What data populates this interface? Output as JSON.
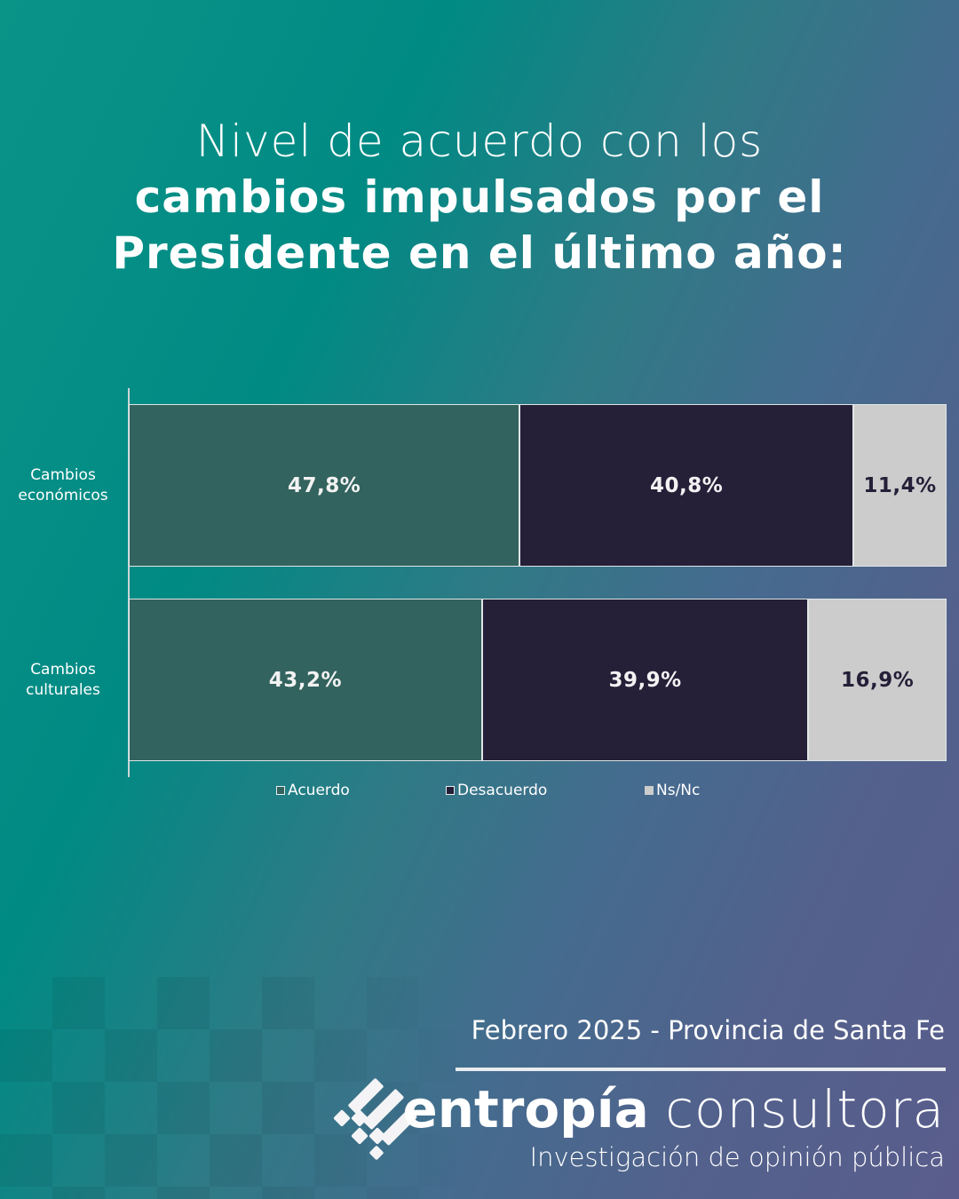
{
  "title": {
    "line1": "Nivel de acuerdo con los",
    "line2": "cambios impulsados por el",
    "line3": "Presidente en el último año:"
  },
  "chart_data": {
    "type": "bar",
    "orientation": "horizontal-stacked-100",
    "title": "Nivel de acuerdo con los cambios impulsados por el Presidente en el último año:",
    "xlabel": "",
    "ylabel": "",
    "xlim": [
      0,
      100
    ],
    "grid": false,
    "legend_position": "bottom",
    "categories": [
      "Cambios económicos",
      "Cambios culturales"
    ],
    "category_lines": [
      [
        "Cambios",
        "económicos"
      ],
      [
        "Cambios",
        "culturales"
      ]
    ],
    "series": [
      {
        "name": "Acuerdo",
        "color": "#33635e",
        "label_color": "#f2f2f2",
        "values": [
          47.8,
          43.2
        ],
        "labels": [
          "47,8%",
          "43,2%"
        ]
      },
      {
        "name": "Desacuerdo",
        "color": "#261f38",
        "label_color": "#f2f2f2",
        "values": [
          40.8,
          39.9
        ],
        "labels": [
          "40,8%",
          "39,9%"
        ]
      },
      {
        "name": "Ns/Nc",
        "color": "#cccccc",
        "label_color": "#261f38",
        "values": [
          11.4,
          16.9
        ],
        "labels": [
          "11,4%",
          "16,9%"
        ]
      }
    ]
  },
  "footer": {
    "date_location": "Febrero 2025 - Provincia de Santa Fe",
    "brand_bold": "entropía",
    "brand_light": "consultora",
    "tagline": "Investigación de opinión pública",
    "logo_icon": "entropia-logo-icon"
  }
}
